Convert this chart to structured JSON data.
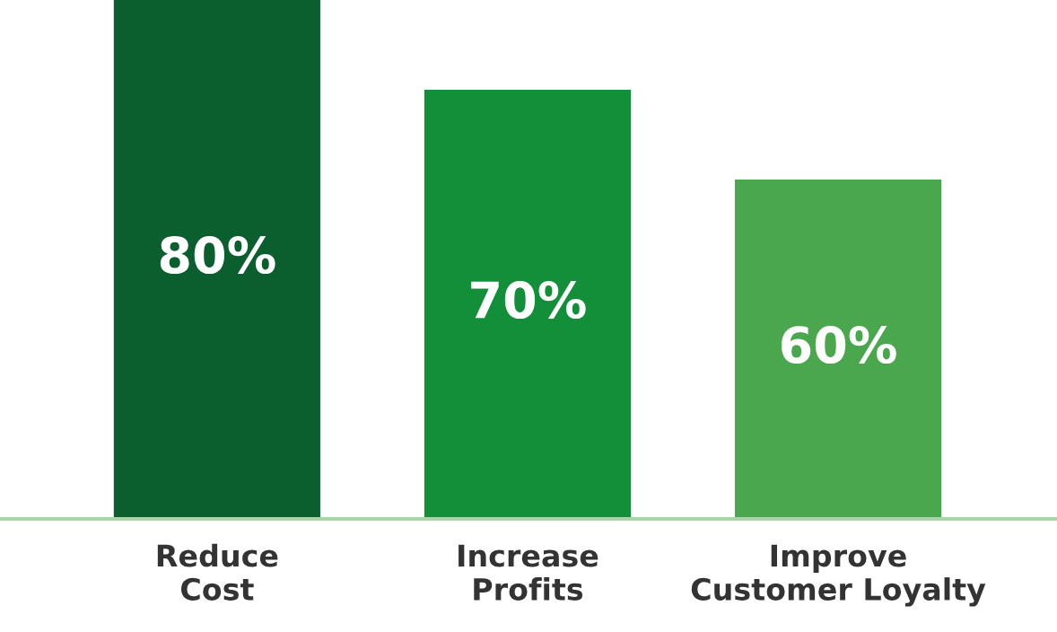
{
  "chart_data": {
    "type": "bar",
    "categories": [
      "Reduce\nCost",
      "Increase\nProfits",
      "Improve\nCustomer Loyalty"
    ],
    "values": [
      80,
      70,
      60
    ],
    "colors": [
      "#0b5e2e",
      "#138f3a",
      "#4aa74e"
    ],
    "value_labels": [
      "80%",
      "70%",
      "60%"
    ],
    "ylim": [
      22.2,
      80
    ],
    "grid": false,
    "legend": false
  }
}
